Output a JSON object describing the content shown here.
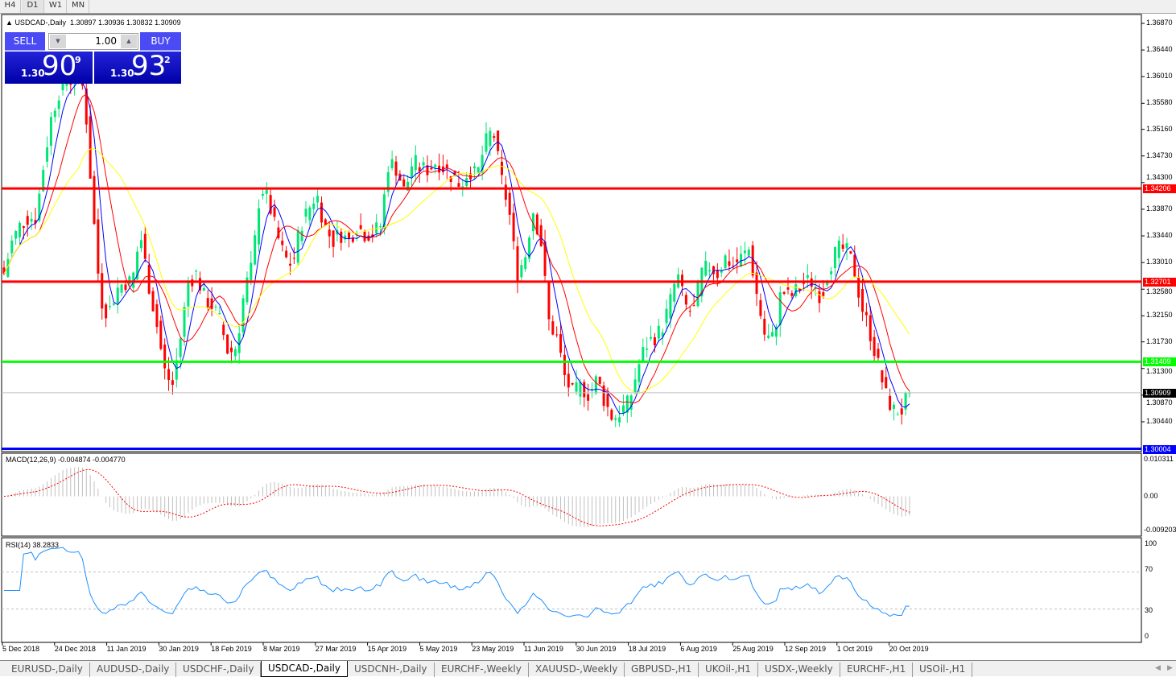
{
  "toolbar": {
    "timeframes": [
      "H4",
      "D1",
      "W1",
      "MN"
    ],
    "active": "D1"
  },
  "chart": {
    "title": "USDCAD-,Daily",
    "ohlc": "1.30897 1.30936 1.30832 1.30909",
    "price_ticks": [
      "1.36870",
      "1.36440",
      "1.36010",
      "1.35580",
      "1.35160",
      "1.34730",
      "1.34300",
      "1.33870",
      "1.33440",
      "1.33010",
      "1.32580",
      "1.32150",
      "1.31730",
      "1.31300",
      "1.30870",
      "1.30440"
    ],
    "price_range": [
      1.30004,
      1.3687
    ],
    "levels": [
      {
        "price": 1.34206,
        "label": "1.34206",
        "color": "#ff0000"
      },
      {
        "price": 1.32701,
        "label": "1.32701",
        "color": "#ff0000"
      },
      {
        "price": 1.31409,
        "label": "1.31409",
        "color": "#00ff00"
      },
      {
        "price": 1.30004,
        "label": "1.30004",
        "color": "#0000ff"
      }
    ],
    "current_price": {
      "price": 1.30909,
      "label": "1.30909"
    },
    "colors": {
      "bull": "#00e676",
      "bear": "#ff0000",
      "ma_fast": "#0000ff",
      "ma_mid": "#ff0000",
      "ma_slow": "#ffff00"
    },
    "approx_closes": [
      1.3283,
      1.3335,
      1.3361,
      1.3374,
      1.3374,
      1.3465,
      1.3543,
      1.3582,
      1.3595,
      1.3595,
      1.3582,
      1.34,
      1.3244,
      1.3218,
      1.3257,
      1.327,
      1.327,
      1.3348,
      1.327,
      1.3205,
      1.3127,
      1.3101,
      1.3179,
      1.327,
      1.3283,
      1.3244,
      1.3231,
      1.3205,
      1.3153,
      1.3166,
      1.3257,
      1.3296,
      1.3426,
      1.34,
      1.3348,
      1.3309,
      1.3296,
      1.3361,
      1.3387,
      1.3413,
      1.3361,
      1.3335,
      1.3348,
      1.3335,
      1.3361,
      1.3348,
      1.3348,
      1.3361,
      1.3465,
      1.3452,
      1.3413,
      1.3465,
      1.3452,
      1.3452,
      1.3465,
      1.3452,
      1.3439,
      1.3426,
      1.3452,
      1.3439,
      1.3491,
      1.3517,
      1.3439,
      1.3387,
      1.3283,
      1.3309,
      1.3387,
      1.3335,
      1.3205,
      1.3179,
      1.3114,
      1.3088,
      1.3101,
      1.3088,
      1.3114,
      1.3075,
      1.3049,
      1.3062,
      1.3075,
      1.3127,
      1.3166,
      1.3179,
      1.3192,
      1.3231,
      1.3283,
      1.3231,
      1.3218,
      1.3283,
      1.3296,
      1.3283,
      1.3309,
      1.3296,
      1.3309,
      1.3322,
      1.3244,
      1.3179,
      1.3179,
      1.3257,
      1.3244,
      1.3257,
      1.327,
      1.327,
      1.3244,
      1.3296,
      1.3322,
      1.3322,
      1.3296,
      1.3231,
      1.3192,
      1.314,
      1.3088,
      1.3062,
      1.3062,
      1.3091
    ],
    "dates": [
      "5 Dec 2018",
      "24 Dec 2018",
      "11 Jan 2019",
      "30 Jan 2019",
      "18 Feb 2019",
      "8 Mar 2019",
      "27 Mar 2019",
      "15 Apr 2019",
      "5 May 2019",
      "23 May 2019",
      "11 Jun 2019",
      "30 Jun 2019",
      "18 Jul 2019",
      "6 Aug 2019",
      "25 Aug 2019",
      "12 Sep 2019",
      "1 Oct 2019",
      "20 Oct 2019"
    ]
  },
  "trade": {
    "sell_label": "SELL",
    "buy_label": "BUY",
    "lots": "1.00",
    "sell_prefix": "1.30",
    "sell_big": "90",
    "sell_sup": "9",
    "buy_prefix": "1.30",
    "buy_big": "93",
    "buy_sup": "2"
  },
  "macd": {
    "label": "MACD(12,26,9) -0.004874 -0.004770",
    "ticks": [
      "0.010311",
      "0.00",
      "-0.009203"
    ],
    "range": [
      -0.009203,
      0.010311
    ]
  },
  "rsi": {
    "label": "RSI(14) 38.2833",
    "ticks": [
      "100",
      "70",
      "30",
      "0"
    ],
    "levels": [
      70,
      30
    ]
  },
  "tabs": [
    "EURUSD-,Daily",
    "AUDUSD-,Daily",
    "USDCHF-,Daily",
    "USDCAD-,Daily",
    "USDCNH-,Daily",
    "EURCHF-,Weekly",
    "XAUUSD-,Weekly",
    "GBPUSD-,H1",
    "UKOil-,H1",
    "USDX-,Weekly",
    "EURCHF-,H1",
    "USOil-,H1"
  ],
  "active_tab": "USDCAD-,Daily"
}
